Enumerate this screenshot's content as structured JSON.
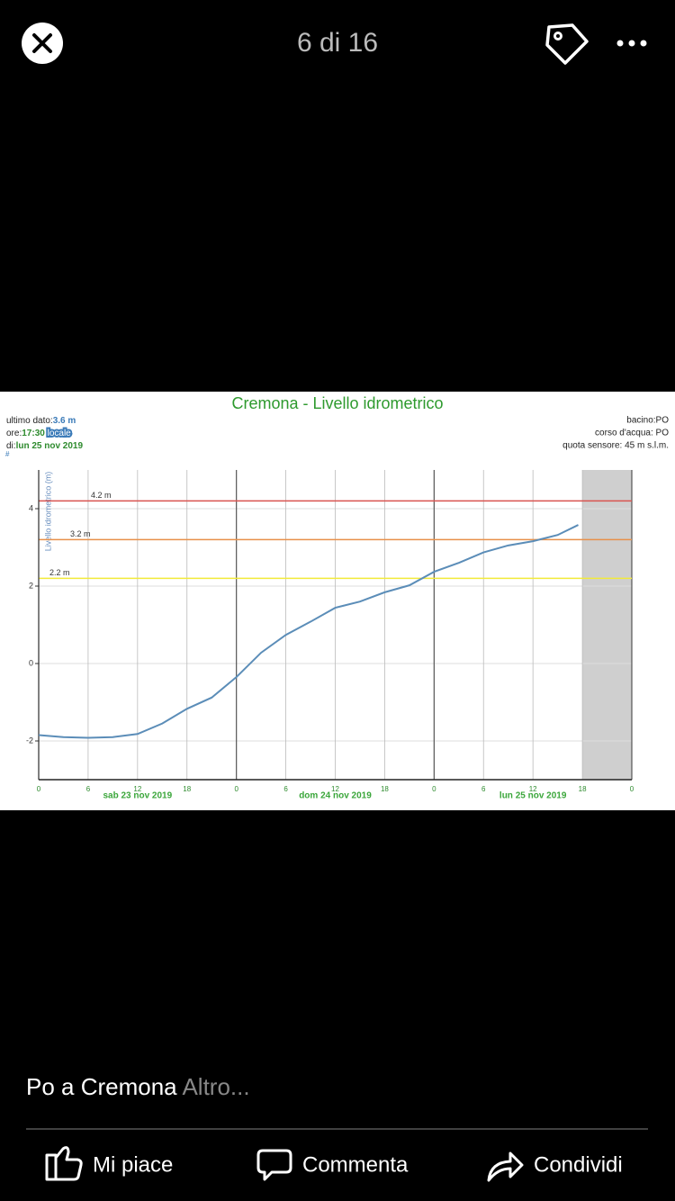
{
  "header": {
    "counter": "6 di 16"
  },
  "chart_data": {
    "type": "line",
    "title": "Cremona - Livello idrometrico",
    "info_left": [
      {
        "label": "ultimo dato:",
        "value": "3.6 m"
      },
      {
        "label": "ore:",
        "value": "17:30",
        "note": "locale"
      },
      {
        "label": "di:",
        "value": "lun 25 nov 2019"
      }
    ],
    "info_right": [
      "bacino:PO",
      "corso d'acqua: PO",
      "quota sensore: 45 m s.l.m."
    ],
    "mark": "#",
    "y_label": "Livello idrometrico (m)",
    "x": [
      0,
      3,
      6,
      9,
      12,
      15,
      18,
      21,
      24,
      27,
      30,
      33,
      36,
      39,
      42,
      45,
      48,
      51,
      54,
      57,
      60,
      63,
      65.5
    ],
    "values": [
      -1.85,
      -1.9,
      -1.92,
      -1.9,
      -1.82,
      -1.55,
      -1.17,
      -0.88,
      -0.35,
      0.28,
      0.74,
      1.08,
      1.44,
      1.6,
      1.84,
      2.02,
      2.37,
      2.6,
      2.87,
      3.05,
      3.16,
      3.32,
      3.58
    ],
    "color": "#5b8db8",
    "xlim": [
      0,
      72
    ],
    "xticks": [
      {
        "value": 0,
        "label": "0"
      },
      {
        "value": 6,
        "label": "6"
      },
      {
        "value": 12,
        "label": "12"
      },
      {
        "value": 18,
        "label": "18"
      },
      {
        "value": 24,
        "label": "0"
      },
      {
        "value": 30,
        "label": "6"
      },
      {
        "value": 36,
        "label": "12"
      },
      {
        "value": 42,
        "label": "18"
      },
      {
        "value": 48,
        "label": "0"
      },
      {
        "value": 54,
        "label": "6"
      },
      {
        "value": 60,
        "label": "12"
      },
      {
        "value": 66,
        "label": "18"
      },
      {
        "value": 72,
        "label": "0"
      }
    ],
    "day_labels": [
      {
        "value": 12,
        "label": "sab 23 nov 2019"
      },
      {
        "value": 36,
        "label": "dom 24 nov 2019"
      },
      {
        "value": 60,
        "label": "lun 25 nov 2019"
      }
    ],
    "ylim": [
      -3,
      5
    ],
    "yticks": [
      -2,
      0,
      2,
      4
    ],
    "thresholds": [
      {
        "value": 4.2,
        "label": "4.2 m",
        "color": "#d9534f"
      },
      {
        "value": 3.2,
        "label": "3.2 m",
        "color": "#e8904a"
      },
      {
        "value": 2.2,
        "label": "2.2 m",
        "color": "#f2ea3a"
      }
    ],
    "shaded_xrange": [
      66,
      72
    ],
    "grid": true
  },
  "caption": {
    "text": "Po a Cremona",
    "more": "Altro..."
  },
  "actions": [
    "Mi piace",
    "Commenta",
    "Condividi"
  ]
}
